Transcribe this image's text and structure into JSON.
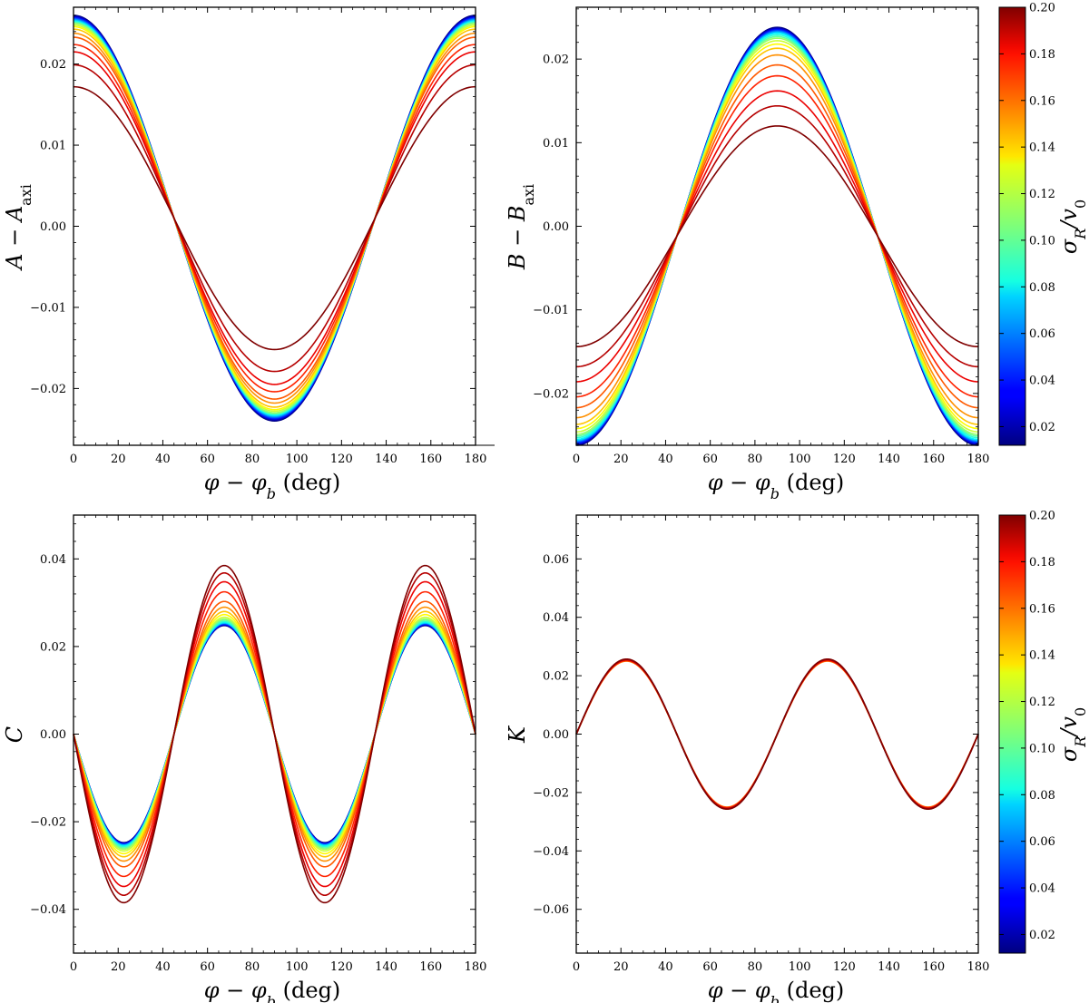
{
  "chart_data": [
    {
      "id": "A",
      "type": "line",
      "xlabel": "φ − φ_b (deg)",
      "ylabel": "A − A_axi",
      "xlim": [
        0,
        180
      ],
      "ylim": [
        -0.027,
        0.027
      ],
      "xticks": [
        0,
        20,
        40,
        60,
        80,
        100,
        120,
        140,
        160,
        180
      ],
      "yticks": [
        -0.02,
        -0.01,
        0.0,
        0.01,
        0.02
      ],
      "ytick_labels": [
        "−0.02",
        "−0.01",
        "0.00",
        "0.01",
        "0.02"
      ],
      "model": "offset + amp*cos(2x)",
      "offset": 0.001,
      "sigma_values": [
        0.01,
        0.02,
        0.03,
        0.04,
        0.05,
        0.06,
        0.07,
        0.08,
        0.09,
        0.1,
        0.11,
        0.12,
        0.13,
        0.14,
        0.15,
        0.16,
        0.17,
        0.18,
        0.19,
        0.2
      ],
      "series_amplitude": [
        0.025,
        0.0249,
        0.0248,
        0.0247,
        0.0246,
        0.0245,
        0.0244,
        0.0243,
        0.0242,
        0.0241,
        0.024,
        0.0238,
        0.0236,
        0.0233,
        0.0228,
        0.0223,
        0.0214,
        0.0205,
        0.0189,
        0.0162
      ]
    },
    {
      "id": "B",
      "type": "line",
      "xlabel": "φ − φ_b (deg)",
      "ylabel": "B − B_axi",
      "xlim": [
        0,
        180
      ],
      "ylim": [
        -0.0262,
        0.0262
      ],
      "xticks": [
        0,
        20,
        40,
        60,
        80,
        100,
        120,
        140,
        160,
        180
      ],
      "yticks": [
        -0.02,
        -0.01,
        0.0,
        0.01,
        0.02
      ],
      "ytick_labels": [
        "−0.02",
        "−0.01",
        "0.00",
        "0.01",
        "0.02"
      ],
      "model": "offset - amp*cos(2x)",
      "offset": -0.0012,
      "sigma_values": [
        0.01,
        0.02,
        0.03,
        0.04,
        0.05,
        0.06,
        0.07,
        0.08,
        0.09,
        0.1,
        0.11,
        0.12,
        0.13,
        0.14,
        0.15,
        0.16,
        0.17,
        0.18,
        0.19,
        0.2
      ],
      "series_amplitude": [
        0.025,
        0.0249,
        0.0248,
        0.0247,
        0.0246,
        0.0245,
        0.0244,
        0.0243,
        0.0241,
        0.0239,
        0.0237,
        0.0234,
        0.023,
        0.0225,
        0.0217,
        0.0205,
        0.0192,
        0.0174,
        0.0156,
        0.0132
      ]
    },
    {
      "id": "C",
      "type": "line",
      "xlabel": "φ − φ_b (deg)",
      "ylabel": "C",
      "xlim": [
        0,
        180
      ],
      "ylim": [
        -0.05,
        0.05
      ],
      "xticks": [
        0,
        20,
        40,
        60,
        80,
        100,
        120,
        140,
        160,
        180
      ],
      "yticks": [
        -0.04,
        -0.02,
        0.0,
        0.02,
        0.04
      ],
      "ytick_labels": [
        "−0.04",
        "−0.02",
        "0.00",
        "0.02",
        "0.04"
      ],
      "model": "-amp*sin(4x)",
      "sigma_values": [
        0.01,
        0.02,
        0.03,
        0.04,
        0.05,
        0.06,
        0.07,
        0.08,
        0.09,
        0.1,
        0.11,
        0.12,
        0.13,
        0.14,
        0.15,
        0.16,
        0.17,
        0.18,
        0.19,
        0.2
      ],
      "series_amplitude": [
        0.0248,
        0.0249,
        0.025,
        0.0251,
        0.0252,
        0.0253,
        0.0254,
        0.0255,
        0.0257,
        0.026,
        0.0263,
        0.0267,
        0.0273,
        0.028,
        0.029,
        0.0303,
        0.0325,
        0.0348,
        0.0368,
        0.0385
      ]
    },
    {
      "id": "K",
      "type": "line",
      "xlabel": "φ − φ_b (deg)",
      "ylabel": "K",
      "xlim": [
        0,
        180
      ],
      "ylim": [
        -0.075,
        0.075
      ],
      "xticks": [
        0,
        20,
        40,
        60,
        80,
        100,
        120,
        140,
        160,
        180
      ],
      "yticks": [
        -0.06,
        -0.04,
        -0.02,
        0.0,
        0.02,
        0.04,
        0.06
      ],
      "ytick_labels": [
        "−0.06",
        "−0.04",
        "−0.02",
        "0.00",
        "0.02",
        "0.04",
        "0.06"
      ],
      "model": "amp*sin(4x)",
      "sigma_values": [
        0.01,
        0.02,
        0.03,
        0.04,
        0.05,
        0.06,
        0.07,
        0.08,
        0.09,
        0.1,
        0.11,
        0.12,
        0.13,
        0.14,
        0.15,
        0.16,
        0.17,
        0.18,
        0.19,
        0.2
      ],
      "series_amplitude": [
        0.0255,
        0.0255,
        0.0255,
        0.0255,
        0.0255,
        0.0255,
        0.0254,
        0.0254,
        0.0254,
        0.0253,
        0.0253,
        0.0252,
        0.0252,
        0.0251,
        0.025,
        0.0251,
        0.0252,
        0.0254,
        0.0255,
        0.0257
      ]
    }
  ],
  "colorbar": {
    "label": "σ_R/v_0",
    "min": 0.012,
    "max": 0.2,
    "ticks": [
      0.02,
      0.04,
      0.06,
      0.08,
      0.1,
      0.12,
      0.14,
      0.16,
      0.18,
      0.2
    ],
    "tick_labels": [
      "0.02",
      "0.04",
      "0.06",
      "0.08",
      "0.10",
      "0.12",
      "0.14",
      "0.16",
      "0.18",
      "0.20"
    ],
    "colormap": "jet"
  },
  "labels": {
    "x_main": "φ − φ",
    "x_sub": "b",
    "x_unit": " (deg)",
    "a_main": "A − A",
    "a_sub": "axi",
    "b_main": "B − B",
    "b_sub": "axi",
    "c_main": "C",
    "k_main": "K",
    "cb_main": "σ",
    "cb_sub": "R",
    "cb_slash": "/v",
    "cb_sub2": "0"
  }
}
